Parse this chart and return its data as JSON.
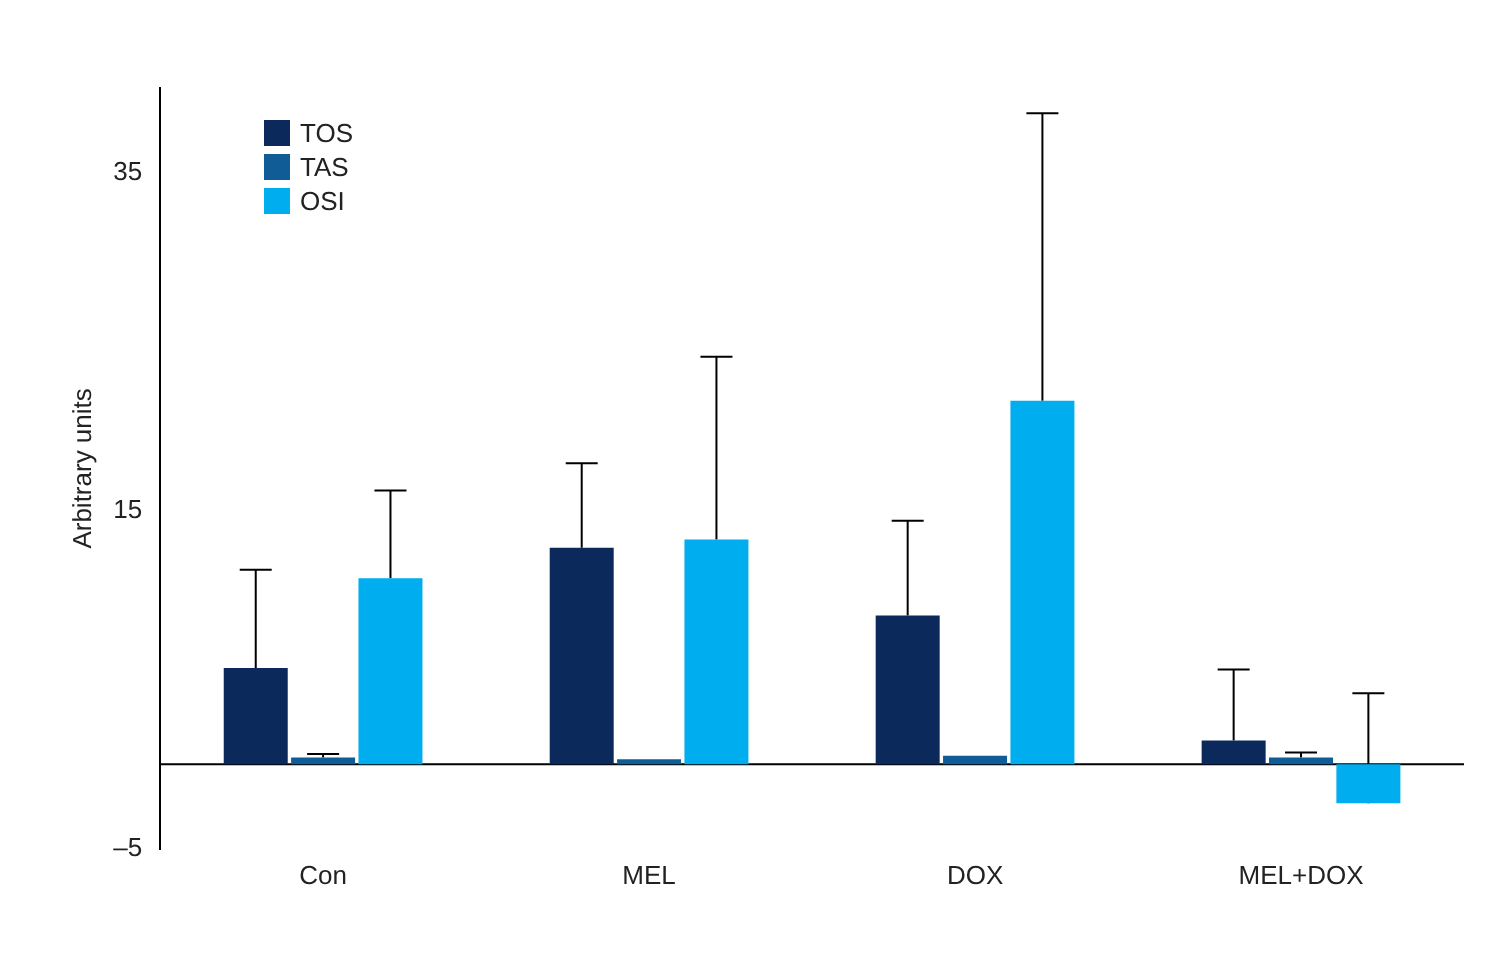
{
  "chart_data": {
    "type": "bar",
    "ylabel": "Arbitrary units",
    "categories": [
      "Con",
      "MEL",
      "DOX",
      "MEL+DOX"
    ],
    "series": [
      {
        "name": "TOS",
        "color": "#0b2a5b",
        "values": [
          5.7,
          12.8,
          8.8,
          1.4
        ],
        "errors": [
          [
            5.7,
            11.5
          ],
          [
            12.8,
            17.8
          ],
          [
            8.8,
            14.4
          ],
          [
            1.4,
            5.6
          ]
        ]
      },
      {
        "name": "TAS",
        "color": "#0f5c96",
        "values": [
          0.4,
          0.3,
          0.5,
          0.4
        ],
        "errors": [
          [
            0.4,
            0.6
          ],
          null,
          null,
          [
            0.4,
            0.7
          ]
        ]
      },
      {
        "name": "OSI",
        "color": "#00adee",
        "values": [
          11.0,
          13.3,
          21.5,
          -2.3
        ],
        "errors": [
          [
            11.0,
            16.2
          ],
          [
            13.3,
            24.1
          ],
          [
            21.5,
            38.5
          ],
          [
            -2.3,
            4.2
          ]
        ]
      }
    ],
    "ylim": [
      -5,
      40
    ],
    "yticks": [
      35,
      15,
      {
        "value": -5,
        "label": "–5"
      }
    ],
    "grid": false,
    "legend": "top left",
    "ref_lines": [
      {
        "axis": "y",
        "value": 0,
        "color": "#000000"
      }
    ]
  }
}
